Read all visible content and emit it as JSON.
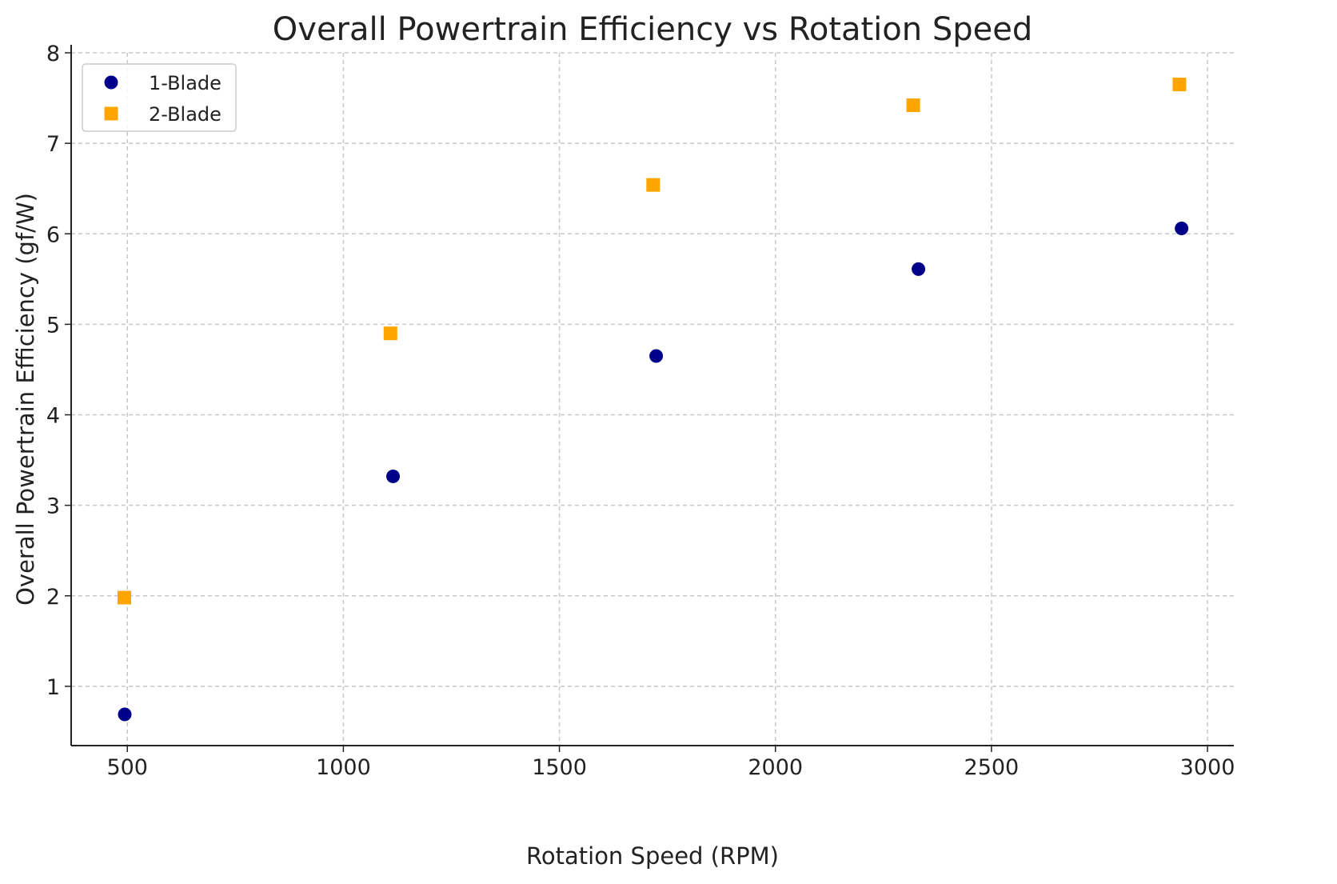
{
  "chart_data": {
    "type": "scatter",
    "title": "Overall Powertrain Efficiency vs Rotation Speed",
    "xlabel": "Rotation Speed (RPM)",
    "ylabel": "Overall Powertrain Efficiency (gf/W)",
    "xlim": [
      370,
      3061
    ],
    "ylim": [
      0.345,
      8
    ],
    "xticks": [
      500,
      1000,
      1500,
      2000,
      2500,
      3000
    ],
    "yticks": [
      1,
      2,
      3,
      4,
      5,
      6,
      7,
      8
    ],
    "grid": true,
    "legend_position": "top-left",
    "series": [
      {
        "name": "1-Blade",
        "marker": "circle",
        "color": "#00008b",
        "x": [
          494,
          1115,
          1724,
          2331,
          2940
        ],
        "y": [
          0.69,
          3.32,
          4.65,
          5.61,
          6.06
        ]
      },
      {
        "name": "2-Blade",
        "marker": "square",
        "color": "#ffa500",
        "x": [
          493,
          1109,
          1717,
          2319,
          2935
        ],
        "y": [
          1.98,
          4.9,
          6.54,
          7.42,
          7.65
        ]
      }
    ]
  }
}
